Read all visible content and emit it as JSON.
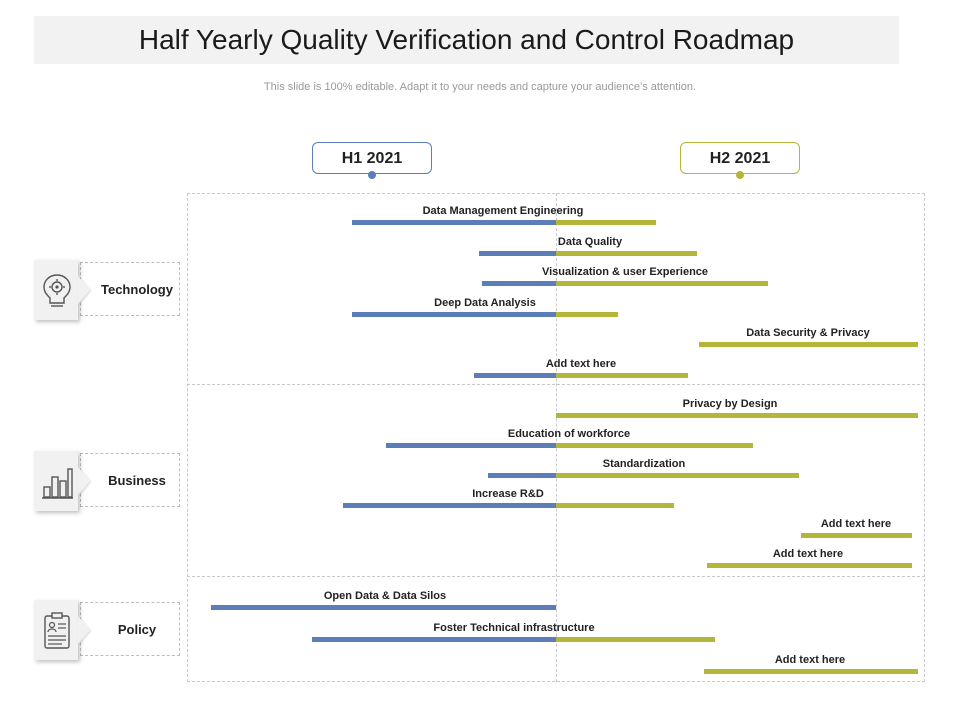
{
  "title": "Half Yearly Quality Verification and Control Roadmap",
  "subtitle": "This slide is 100% editable. Adapt it to your needs and capture your audience’s attention.",
  "periods": [
    {
      "label": "H1 2021",
      "color": "#5b7db8"
    },
    {
      "label": "H2 2021",
      "color": "#b4b63a"
    }
  ],
  "colors": {
    "h1": "#5b7db8",
    "h2": "#b4b63a"
  },
  "categories": [
    {
      "label": "Technology",
      "icon": "lightbulb-gear-icon"
    },
    {
      "label": "Business",
      "icon": "bar-chart-icon"
    },
    {
      "label": "Policy",
      "icon": "clipboard-icon"
    }
  ],
  "tasks": [
    {
      "label": "Data Management Engineering",
      "category": "Technology"
    },
    {
      "label": "Data Quality",
      "category": "Technology"
    },
    {
      "label": "Visualization & user Experience",
      "category": "Technology"
    },
    {
      "label": "Deep Data Analysis",
      "category": "Technology"
    },
    {
      "label": "Data Security & Privacy",
      "category": "Technology"
    },
    {
      "label": "Add  text here",
      "category": "Technology"
    },
    {
      "label": "Privacy by Design",
      "category": "Business"
    },
    {
      "label": "Education  of workforce",
      "category": "Business"
    },
    {
      "label": "Standardization",
      "category": "Business"
    },
    {
      "label": "Increase R&D",
      "category": "Business"
    },
    {
      "label": "Add  text here",
      "category": "Business"
    },
    {
      "label": "Add  text here",
      "category": "Business"
    },
    {
      "label": "Open Data & Data Silos",
      "category": "Policy"
    },
    {
      "label": "Foster Technical infrastructure",
      "category": "Policy"
    },
    {
      "label": "Add  text here",
      "category": "Policy"
    }
  ]
}
